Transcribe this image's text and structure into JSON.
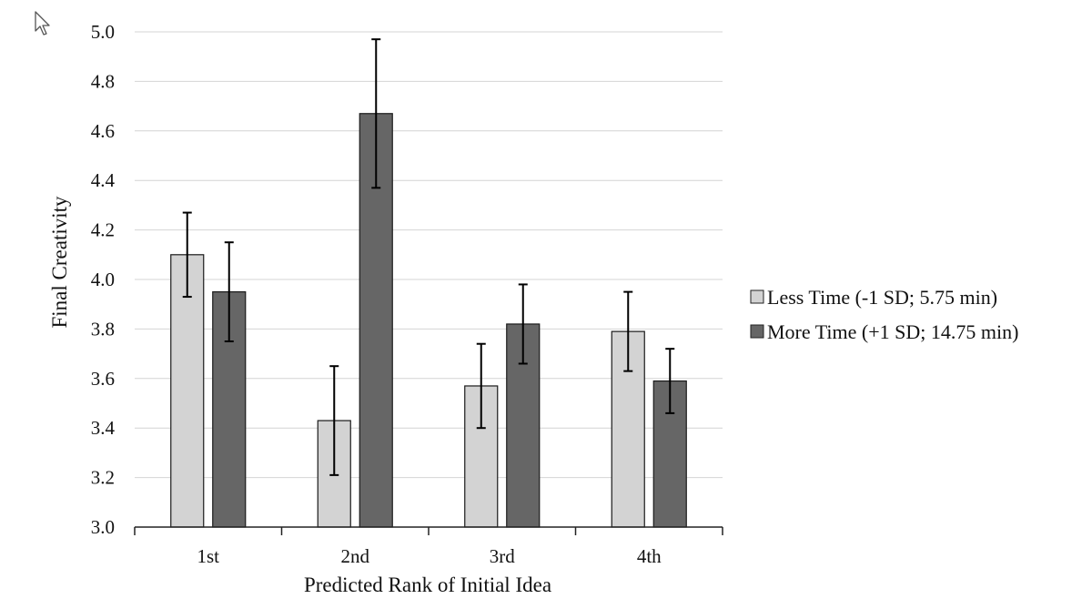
{
  "chart_data": {
    "type": "bar",
    "title": "",
    "xlabel": "Predicted Rank of Initial Idea",
    "ylabel": "Final Creativity",
    "categories": [
      "1st",
      "2nd",
      "3rd",
      "4th"
    ],
    "ylim": [
      3.0,
      5.0
    ],
    "yticks": [
      "3.0",
      "3.2",
      "3.4",
      "3.6",
      "3.8",
      "4.0",
      "4.2",
      "4.4",
      "4.6",
      "4.8",
      "5.0"
    ],
    "grid": true,
    "legend_position": "right",
    "series": [
      {
        "name": "Less Time (-1 SD; 5.75 min)",
        "color": "#d3d3d3",
        "values": [
          4.1,
          3.43,
          3.57,
          3.79
        ],
        "error_low": [
          3.93,
          3.21,
          3.4,
          3.63
        ],
        "error_high": [
          4.27,
          3.65,
          3.74,
          3.95
        ]
      },
      {
        "name": "More Time (+1 SD; 14.75 min)",
        "color": "#666666",
        "values": [
          3.95,
          4.67,
          3.82,
          3.59
        ],
        "error_low": [
          3.75,
          4.37,
          3.66,
          3.46
        ],
        "error_high": [
          4.15,
          4.97,
          3.98,
          3.72
        ]
      }
    ]
  }
}
